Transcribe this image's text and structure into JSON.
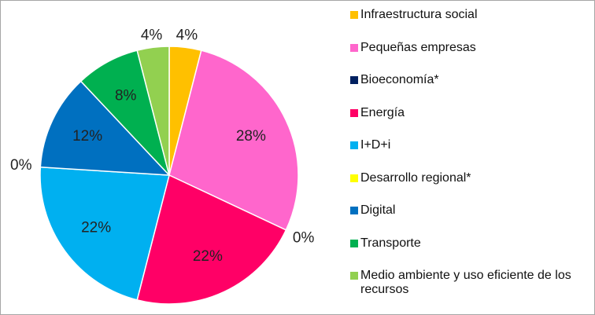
{
  "chart_data": {
    "type": "pie",
    "categories": [
      "Infraestructura social",
      "Pequeñas empresas",
      "Bioeconomía*",
      "Energía",
      "I+D+i",
      "Desarrollo regional*",
      "Digital",
      "Transporte",
      "Medio ambiente y uso eficiente de los recursos"
    ],
    "values": [
      4,
      28,
      0,
      22,
      22,
      0,
      12,
      8,
      4
    ],
    "value_labels": [
      "4%",
      "28%",
      "0%",
      "22%",
      "22%",
      "0%",
      "12%",
      "8%",
      "4%"
    ],
    "colors": [
      "#ffc000",
      "#ff66cc",
      "#002060",
      "#ff0066",
      "#00b0f0",
      "#ffff00",
      "#0070c0",
      "#00b050",
      "#92d050"
    ],
    "legend": "right"
  }
}
